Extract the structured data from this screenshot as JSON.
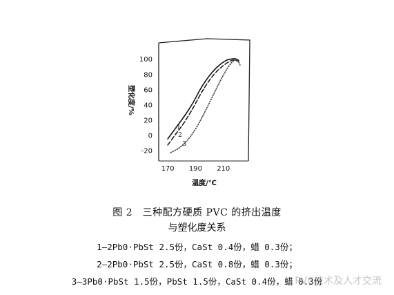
{
  "chart_data": {
    "type": "line",
    "xlabel": "温度/℃",
    "ylabel": "塑化度/%",
    "xlim": [
      165,
      226
    ],
    "ylim": [
      -33,
      112
    ],
    "x_ticks": [
      "170",
      "190",
      "210"
    ],
    "y_ticks": [
      "100",
      "80",
      "60",
      "40",
      "20",
      "0",
      "-20"
    ],
    "series": [
      {
        "name": "1",
        "style": "solid",
        "points": [
          [
            170,
            -5
          ],
          [
            176,
            10
          ],
          [
            182,
            25
          ],
          [
            188,
            42
          ],
          [
            194,
            62
          ],
          [
            200,
            78
          ],
          [
            206,
            90
          ],
          [
            212,
            98
          ],
          [
            216,
            100
          ],
          [
            219,
            100
          ],
          [
            221,
            98
          ]
        ]
      },
      {
        "name": "2",
        "style": "dashed",
        "points": [
          [
            170,
            -13
          ],
          [
            176,
            2
          ],
          [
            182,
            17
          ],
          [
            188,
            35
          ],
          [
            194,
            55
          ],
          [
            200,
            72
          ],
          [
            206,
            85
          ],
          [
            212,
            94
          ],
          [
            216,
            98
          ],
          [
            219,
            98
          ],
          [
            221,
            96
          ]
        ]
      },
      {
        "name": "3",
        "style": "dotted",
        "points": [
          [
            172,
            -23
          ],
          [
            178,
            -17
          ],
          [
            184,
            -7
          ],
          [
            190,
            8
          ],
          [
            196,
            28
          ],
          [
            202,
            50
          ],
          [
            208,
            72
          ],
          [
            213,
            88
          ],
          [
            217,
            97
          ],
          [
            220,
            98
          ],
          [
            222,
            92
          ]
        ]
      }
    ]
  },
  "caption": {
    "title": "图 2　三种配方硬质 PVC 的挤出温度",
    "subtitle": "与塑化度关系"
  },
  "legend_lines": [
    "1—2Pb0·PbSt 2.5份，CaSt 0.4份，蜡 0.3份；",
    "2—2Pb0·PbSt 2.5份，CaSt 0.8份，蜡 0.3份；",
    "3—3Pb0·PbSt 1.5份，PbSt 1.5份，CaSt 0.4份，蜡 0.3份"
  ],
  "watermark": "PVC技术及人才交流"
}
